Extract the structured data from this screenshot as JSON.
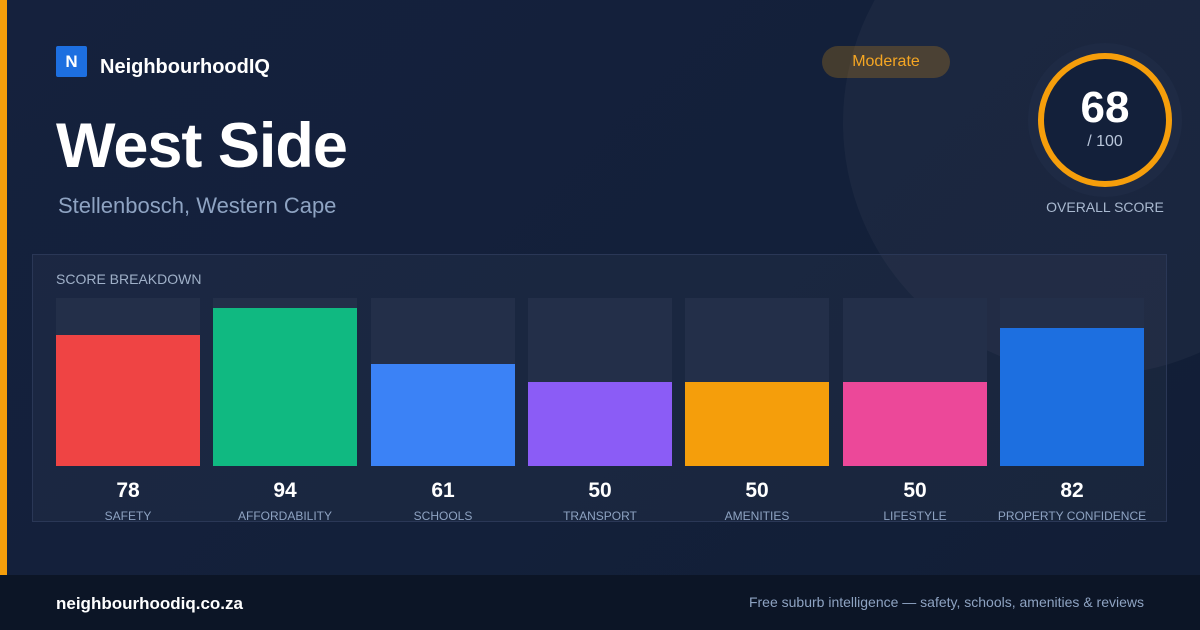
{
  "brand": {
    "logo_letter": "N",
    "name": "NeighbourhoodIQ"
  },
  "hero": {
    "title": "West Side",
    "subtitle": "Stellenbosch, Western Cape",
    "badge": "Moderate",
    "overall_score": "68",
    "score_denominator": "/ 100",
    "overall_label": "OVERALL SCORE"
  },
  "breakdown": {
    "title": "SCORE BREAKDOWN",
    "max": 100
  },
  "chart_data": {
    "type": "bar",
    "categories": [
      "SAFETY",
      "AFFORDABILITY",
      "SCHOOLS",
      "TRANSPORT",
      "AMENITIES",
      "LIFESTYLE",
      "PROPERTY CONFIDENCE"
    ],
    "values": [
      78,
      94,
      61,
      50,
      50,
      50,
      82
    ],
    "colors": [
      "#ef4444",
      "#10b981",
      "#3b82f6",
      "#8b5cf6",
      "#f59e0b",
      "#ec4899",
      "#1d6fe0"
    ],
    "ylim": [
      0,
      100
    ]
  },
  "colors": {
    "accent": "#f59e0b",
    "background": "#13203a",
    "brand_blue": "#1d6fe0"
  },
  "footer": {
    "site": "neighbourhoodiq.co.za",
    "tagline": "Free suburb intelligence — safety, schools, amenities & reviews"
  }
}
